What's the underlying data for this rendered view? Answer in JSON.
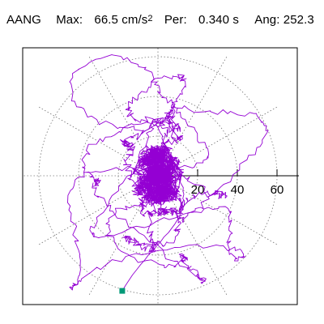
{
  "header": {
    "label": "AANG",
    "max_label": "Max:",
    "max_value": "66.5 cm/s",
    "max_exp": "2",
    "per_label": "Per:",
    "per_value": "0.340 s",
    "ang_label": "Ang:",
    "ang_value": "252.3"
  },
  "colors": {
    "trace": "#9400d3",
    "marker": "#009977",
    "grid": "#777777",
    "axis": "#000000",
    "frame": "#000000"
  },
  "chart_data": {
    "type": "polar-orbit",
    "title": "AANG",
    "radial_ticks": [
      "20",
      "40",
      "60"
    ],
    "radial_tick_values": [
      20,
      40,
      60
    ],
    "rings": [
      20,
      40,
      60
    ],
    "rmax": 70,
    "spokes_deg": [
      0,
      30,
      60,
      90,
      120,
      150,
      180,
      210,
      240,
      270,
      300,
      330
    ],
    "grid": true,
    "max_acceleration_cm_s2": 66.5,
    "period_s": 0.34,
    "angle_deg": 252.3,
    "end_point": {
      "x": -18,
      "y": -58
    },
    "trace_params": {
      "steps": 3000,
      "seed": 7,
      "components": [
        {
          "ax": 20,
          "ay": 58,
          "wx": 1.0,
          "wy": 1.0,
          "px": 0.3,
          "py": 1.9,
          "decay": 0.8
        },
        {
          "ax": 45,
          "ay": 12,
          "wx": 2.7,
          "wy": 3.1,
          "px": 1.2,
          "py": 0.4,
          "decay": 1.2
        },
        {
          "ax": 18,
          "ay": 18,
          "wx": 7.3,
          "wy": 6.1,
          "px": 0.0,
          "py": 2.2,
          "decay": 2.5
        }
      ]
    }
  }
}
